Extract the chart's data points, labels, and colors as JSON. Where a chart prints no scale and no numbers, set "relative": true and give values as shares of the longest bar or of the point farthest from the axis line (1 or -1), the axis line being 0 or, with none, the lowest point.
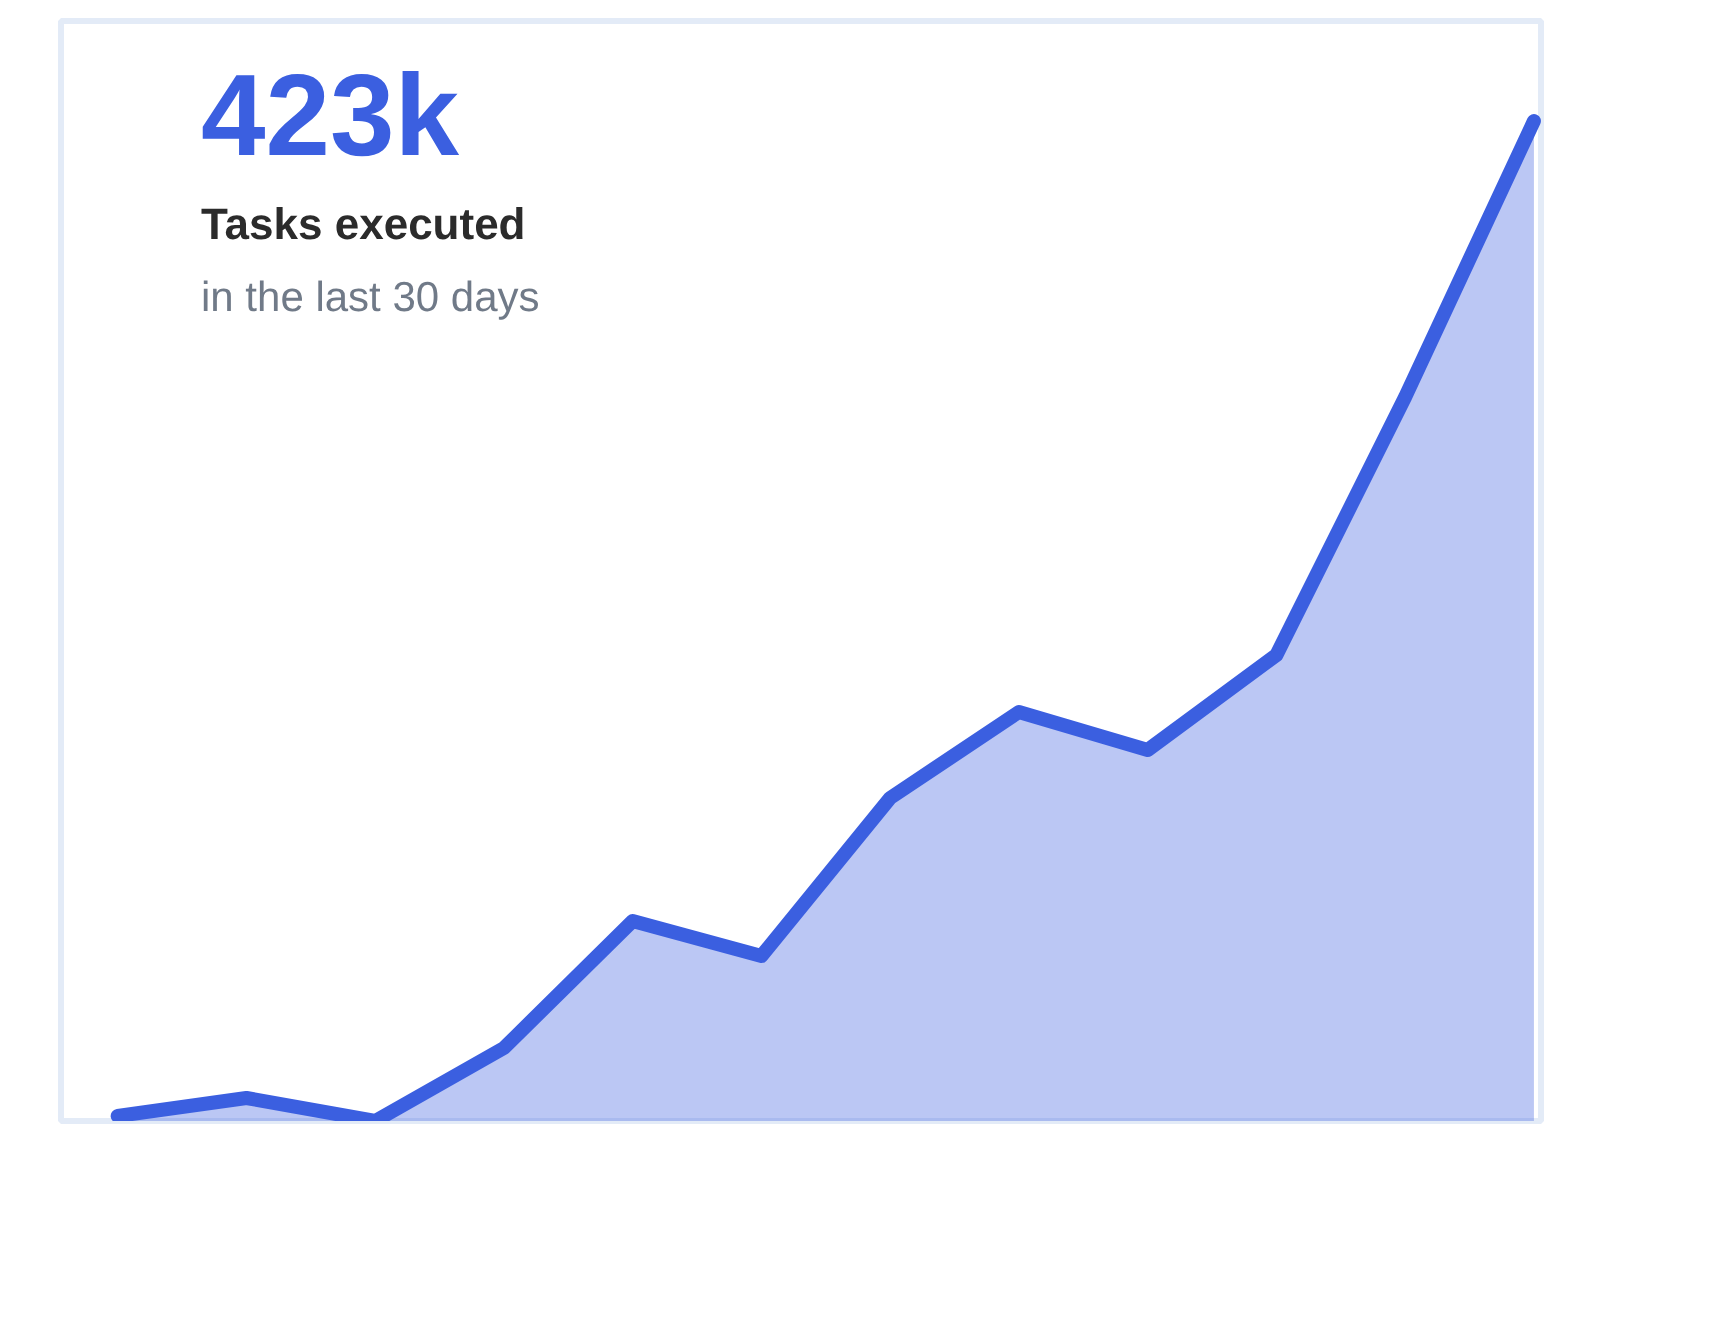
{
  "chart_data": {
    "type": "area",
    "title": "423k",
    "subtitle": "Tasks executed",
    "annotations": [
      "in the last 30 days"
    ],
    "relative": true,
    "categories": [
      null,
      null,
      null,
      null,
      null,
      null,
      null,
      null,
      null,
      null,
      null,
      null
    ],
    "series": [
      {
        "color": "#3b5fe0",
        "values": [
          0.005,
          0.023,
          0,
          0.073,
          0.2,
          0.165,
          0.323,
          0.409,
          0.371,
          0.466,
          0.724,
          1
        ]
      }
    ],
    "grid": false
  }
}
